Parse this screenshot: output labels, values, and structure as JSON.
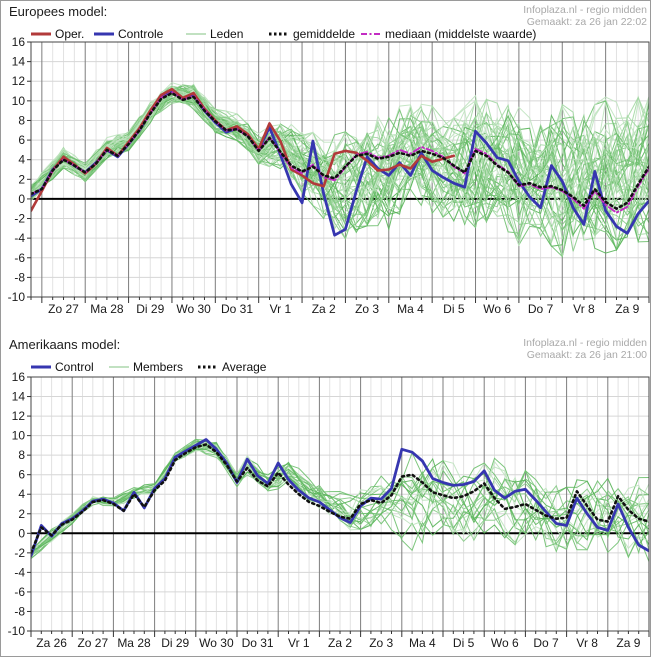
{
  "chart_data": [
    {
      "type": "line",
      "title": "Europees model:",
      "info_source": "Infoplaza.nl - regio midden",
      "info_generated": "Gemaakt: za 26 jan 22:02",
      "y_axis": {
        "min": -10,
        "max": 16,
        "step": 2
      },
      "x_axis": {
        "total_days": 14.25,
        "day_offset": 0.25,
        "minor_step_days": 0.25
      },
      "x_labels": [
        "Zo 27",
        "Ma 28",
        "Di 29",
        "Wo 30",
        "Do 31",
        "Vr 1",
        "Za 2",
        "Zo 3",
        "Ma 4",
        "Di 5",
        "Wo 6",
        "Do 7",
        "Vr 8",
        "Za 9"
      ],
      "legend": [
        {
          "label": "Oper.",
          "color": "#b23a3a",
          "style": "solid",
          "width": 3
        },
        {
          "label": "Controle",
          "color": "#3636b0",
          "style": "solid",
          "width": 3
        },
        {
          "label": "Leden",
          "color": "#9ccf9c",
          "style": "solid",
          "width": 1.2
        },
        {
          "label": "gemiddelde",
          "color": "#111111",
          "style": "dotted",
          "width": 3
        },
        {
          "label": "mediaan (middelste waarde)",
          "color": "#c32cc3",
          "style": "dashdot",
          "width": 2
        }
      ],
      "series": [
        {
          "name": "Controle",
          "color": "#3636b0",
          "style": "solid",
          "width": 2.8,
          "t0": 0,
          "dt": 0.25,
          "values": [
            0.3,
            1.0,
            3.0,
            4.1,
            3.4,
            2.7,
            3.7,
            5.0,
            4.3,
            5.6,
            7.0,
            8.8,
            10.4,
            11.0,
            10.2,
            10.6,
            9.0,
            7.8,
            6.8,
            7.2,
            6.5,
            5.0,
            7.3,
            4.5,
            1.5,
            -0.4,
            5.9,
            0.5,
            -3.7,
            -3.1,
            0.8,
            4.3,
            3.1,
            2.4,
            3.7,
            2.4,
            4.7,
            2.9,
            2.2,
            1.6,
            1.2,
            6.9,
            5.7,
            4.2,
            3.9,
            1.8,
            0.2,
            -0.9,
            3.4,
            1.8,
            -0.9,
            -2.6,
            2.8,
            -1.2,
            -2.8,
            -3.5,
            -1.5,
            -0.2
          ]
        },
        {
          "name": "Oper.",
          "color": "#b23a3a",
          "style": "solid",
          "width": 2.6,
          "t0": 0,
          "dt": 0.25,
          "values": [
            -1.2,
            0.8,
            2.9,
            4.3,
            3.5,
            2.6,
            3.6,
            5.2,
            4.4,
            5.8,
            7.2,
            9.0,
            10.6,
            11.2,
            10.3,
            10.8,
            9.2,
            8.0,
            7.0,
            7.4,
            6.6,
            5.1,
            7.7,
            5.9,
            3.0,
            2.4,
            1.6,
            1.3,
            4.6,
            4.9,
            4.7,
            3.9,
            2.9,
            3.0,
            3.5,
            3.1,
            4.4,
            3.8,
            4.1,
            4.4
          ]
        },
        {
          "name": "mediaan (middelste waarde)",
          "color": "#c32cc3",
          "style": "dashdot",
          "width": 2,
          "t0": 0,
          "dt": 0.25,
          "values": [
            0.5,
            1.0,
            2.9,
            4.0,
            3.4,
            2.7,
            3.6,
            5.0,
            4.4,
            5.6,
            7.0,
            8.7,
            10.3,
            10.9,
            10.1,
            10.5,
            9.1,
            7.9,
            7.0,
            7.1,
            6.4,
            4.9,
            6.3,
            4.7,
            3.2,
            2.6,
            3.5,
            2.2,
            1.9,
            3.2,
            4.5,
            4.8,
            4.2,
            4.4,
            5.0,
            4.6,
            5.3,
            4.9,
            4.3,
            3.3,
            2.6,
            5.1,
            4.6,
            3.5,
            2.8,
            1.3,
            1.5,
            1.0,
            1.2,
            0.8,
            0.0,
            -1.0,
            0.8,
            -0.6,
            -1.4,
            -0.8,
            1.3,
            3.1
          ]
        },
        {
          "name": "gemiddelde",
          "color": "#111111",
          "style": "dotted",
          "width": 2.6,
          "t0": 0,
          "dt": 0.25,
          "values": [
            0.5,
            1.0,
            2.9,
            4.0,
            3.4,
            2.7,
            3.6,
            5.0,
            4.4,
            5.6,
            7.0,
            8.7,
            10.2,
            10.8,
            10.1,
            10.4,
            9.0,
            7.9,
            7.0,
            7.1,
            6.4,
            4.9,
            6.2,
            4.8,
            3.4,
            2.8,
            3.3,
            2.4,
            2.1,
            3.3,
            4.4,
            4.6,
            4.1,
            4.3,
            4.7,
            4.4,
            4.9,
            4.6,
            4.2,
            3.4,
            2.7,
            4.9,
            4.4,
            3.4,
            2.7,
            1.4,
            1.6,
            1.2,
            1.3,
            0.9,
            0.2,
            -0.7,
            1.0,
            -0.3,
            -1.0,
            -0.4,
            1.5,
            3.3
          ]
        }
      ],
      "members": {
        "label": "Leden",
        "count": 50,
        "color_palette": [
          "#58b458",
          "#6fc06f",
          "#87cb87",
          "#a3d8a3",
          "#bfe3bf"
        ],
        "envelope": {
          "t": [
            0,
            0.75,
            1.25,
            1.75,
            2.25,
            2.75,
            3.25,
            3.75,
            4.25,
            4.75,
            5.25,
            5.75,
            6.25,
            6.75,
            7.25,
            7.75,
            8.25,
            8.75,
            9.25,
            9.75,
            10.25,
            10.75,
            11.25,
            11.75,
            12.25,
            12.75,
            13.25,
            13.75,
            14.25
          ],
          "lo": [
            -0.2,
            3.2,
            1.8,
            4.2,
            4.8,
            7.8,
            9.8,
            9.2,
            6.8,
            6.0,
            3.6,
            3.2,
            0.8,
            -1.8,
            -3.8,
            -2.5,
            -2.8,
            0.2,
            -1.2,
            -2.0,
            -2.6,
            -1.5,
            -4.6,
            -3.5,
            -5.5,
            -4.5,
            -5.2,
            -4.5,
            -4.0
          ],
          "hi": [
            1.4,
            5.2,
            3.6,
            6.2,
            6.8,
            9.8,
            11.8,
            11.6,
            9.2,
            8.6,
            6.6,
            8.0,
            7.2,
            6.0,
            6.6,
            7.5,
            8.8,
            9.6,
            9.2,
            8.0,
            10.2,
            9.5,
            9.0,
            8.0,
            9.5,
            8.5,
            10.0,
            9.0,
            11.0
          ]
        }
      }
    },
    {
      "type": "line",
      "title": "Amerikaans model:",
      "info_source": "Infoplaza.nl - regio midden",
      "info_generated": "Gemaakt: za 26 jan 21:00",
      "y_axis": {
        "min": -10,
        "max": 16,
        "step": 2
      },
      "x_axis": {
        "total_days": 15,
        "day_offset": 0,
        "minor_step_days": 0.25
      },
      "x_labels": [
        "Za 26",
        "Zo 27",
        "Ma 28",
        "Di 29",
        "Wo 30",
        "Do 31",
        "Vr 1",
        "Za 2",
        "Zo 3",
        "Ma 4",
        "Di 5",
        "Wo 6",
        "Do 7",
        "Vr 8",
        "Za 9"
      ],
      "legend": [
        {
          "label": "Control",
          "color": "#3636b0",
          "style": "solid",
          "width": 3
        },
        {
          "label": "Members",
          "color": "#9ccf9c",
          "style": "solid",
          "width": 1.2
        },
        {
          "label": "Average",
          "color": "#111111",
          "style": "dotted",
          "width": 3
        }
      ],
      "series": [
        {
          "name": "Control",
          "color": "#3636b0",
          "style": "solid",
          "width": 2.8,
          "t0": 0,
          "dt": 0.25,
          "values": [
            -2.3,
            0.8,
            -0.3,
            1.0,
            1.5,
            2.3,
            3.3,
            3.5,
            3.1,
            2.3,
            4.2,
            2.6,
            4.6,
            5.6,
            7.8,
            8.4,
            9.0,
            9.6,
            8.6,
            7.2,
            5.2,
            7.6,
            5.9,
            5.1,
            7.2,
            5.5,
            4.4,
            3.6,
            3.2,
            2.4,
            1.6,
            1.1,
            2.8,
            3.6,
            3.5,
            4.6,
            8.6,
            8.3,
            7.4,
            5.6,
            5.2,
            4.9,
            5.0,
            5.3,
            6.4,
            4.4,
            3.6,
            4.3,
            4.5,
            3.4,
            2.2,
            1.0,
            0.8,
            3.6,
            2.0,
            0.6,
            0.3,
            3.0,
            0.6,
            -1.2,
            -1.8
          ]
        },
        {
          "name": "Average",
          "color": "#111111",
          "style": "dotted",
          "width": 2.6,
          "t0": 0,
          "dt": 0.25,
          "values": [
            -2.0,
            0.6,
            -0.2,
            0.9,
            1.4,
            2.2,
            3.2,
            3.4,
            3.0,
            2.3,
            4.0,
            2.7,
            4.4,
            5.4,
            7.5,
            8.2,
            8.8,
            9.1,
            8.3,
            7.0,
            5.3,
            6.7,
            5.4,
            4.8,
            6.2,
            5.0,
            4.0,
            3.2,
            2.8,
            2.2,
            1.7,
            1.5,
            3.0,
            3.4,
            3.1,
            3.9,
            5.8,
            6.0,
            5.2,
            4.2,
            3.9,
            3.6,
            3.8,
            4.3,
            5.1,
            3.6,
            2.5,
            2.7,
            3.0,
            2.4,
            1.8,
            1.5,
            1.6,
            4.3,
            2.8,
            1.4,
            1.2,
            3.8,
            2.4,
            1.5,
            1.2
          ]
        }
      ],
      "members": {
        "label": "Members",
        "count": 20,
        "color_palette": [
          "#58b458",
          "#6fc06f",
          "#87cb87",
          "#a3d8a3",
          "#bfe3bf"
        ],
        "envelope": {
          "t": [
            0,
            0.5,
            1,
            1.5,
            2,
            2.5,
            3,
            3.5,
            4,
            4.5,
            5,
            5.25,
            5.75,
            6.25,
            6.75,
            7.25,
            7.75,
            8.25,
            8.75,
            9.25,
            9.75,
            10.25,
            10.75,
            11.25,
            11.75,
            12.25,
            12.75,
            13.25,
            13.75,
            14.25,
            14.75,
            15
          ],
          "lo": [
            -2.6,
            -0.8,
            1.0,
            2.8,
            2.6,
            3.6,
            4.2,
            7.2,
            8.4,
            7.8,
            4.8,
            6.0,
            4.2,
            5.0,
            3.0,
            1.8,
            0.2,
            0.8,
            0.5,
            -1.5,
            0.0,
            -0.5,
            -1.5,
            0.0,
            -1.0,
            -0.5,
            -2.5,
            -1.5,
            -1.5,
            -2.0,
            -2.5,
            -2.8
          ],
          "hi": [
            -1.6,
            0.4,
            2.0,
            3.9,
            3.6,
            4.8,
            5.2,
            8.4,
            9.6,
            9.4,
            6.2,
            8.0,
            6.0,
            7.4,
            5.8,
            4.6,
            3.8,
            5.0,
            6.5,
            8.0,
            7.5,
            7.0,
            6.5,
            7.5,
            6.0,
            6.5,
            5.0,
            5.5,
            6.5,
            5.5,
            5.5,
            5.5
          ]
        }
      }
    }
  ]
}
